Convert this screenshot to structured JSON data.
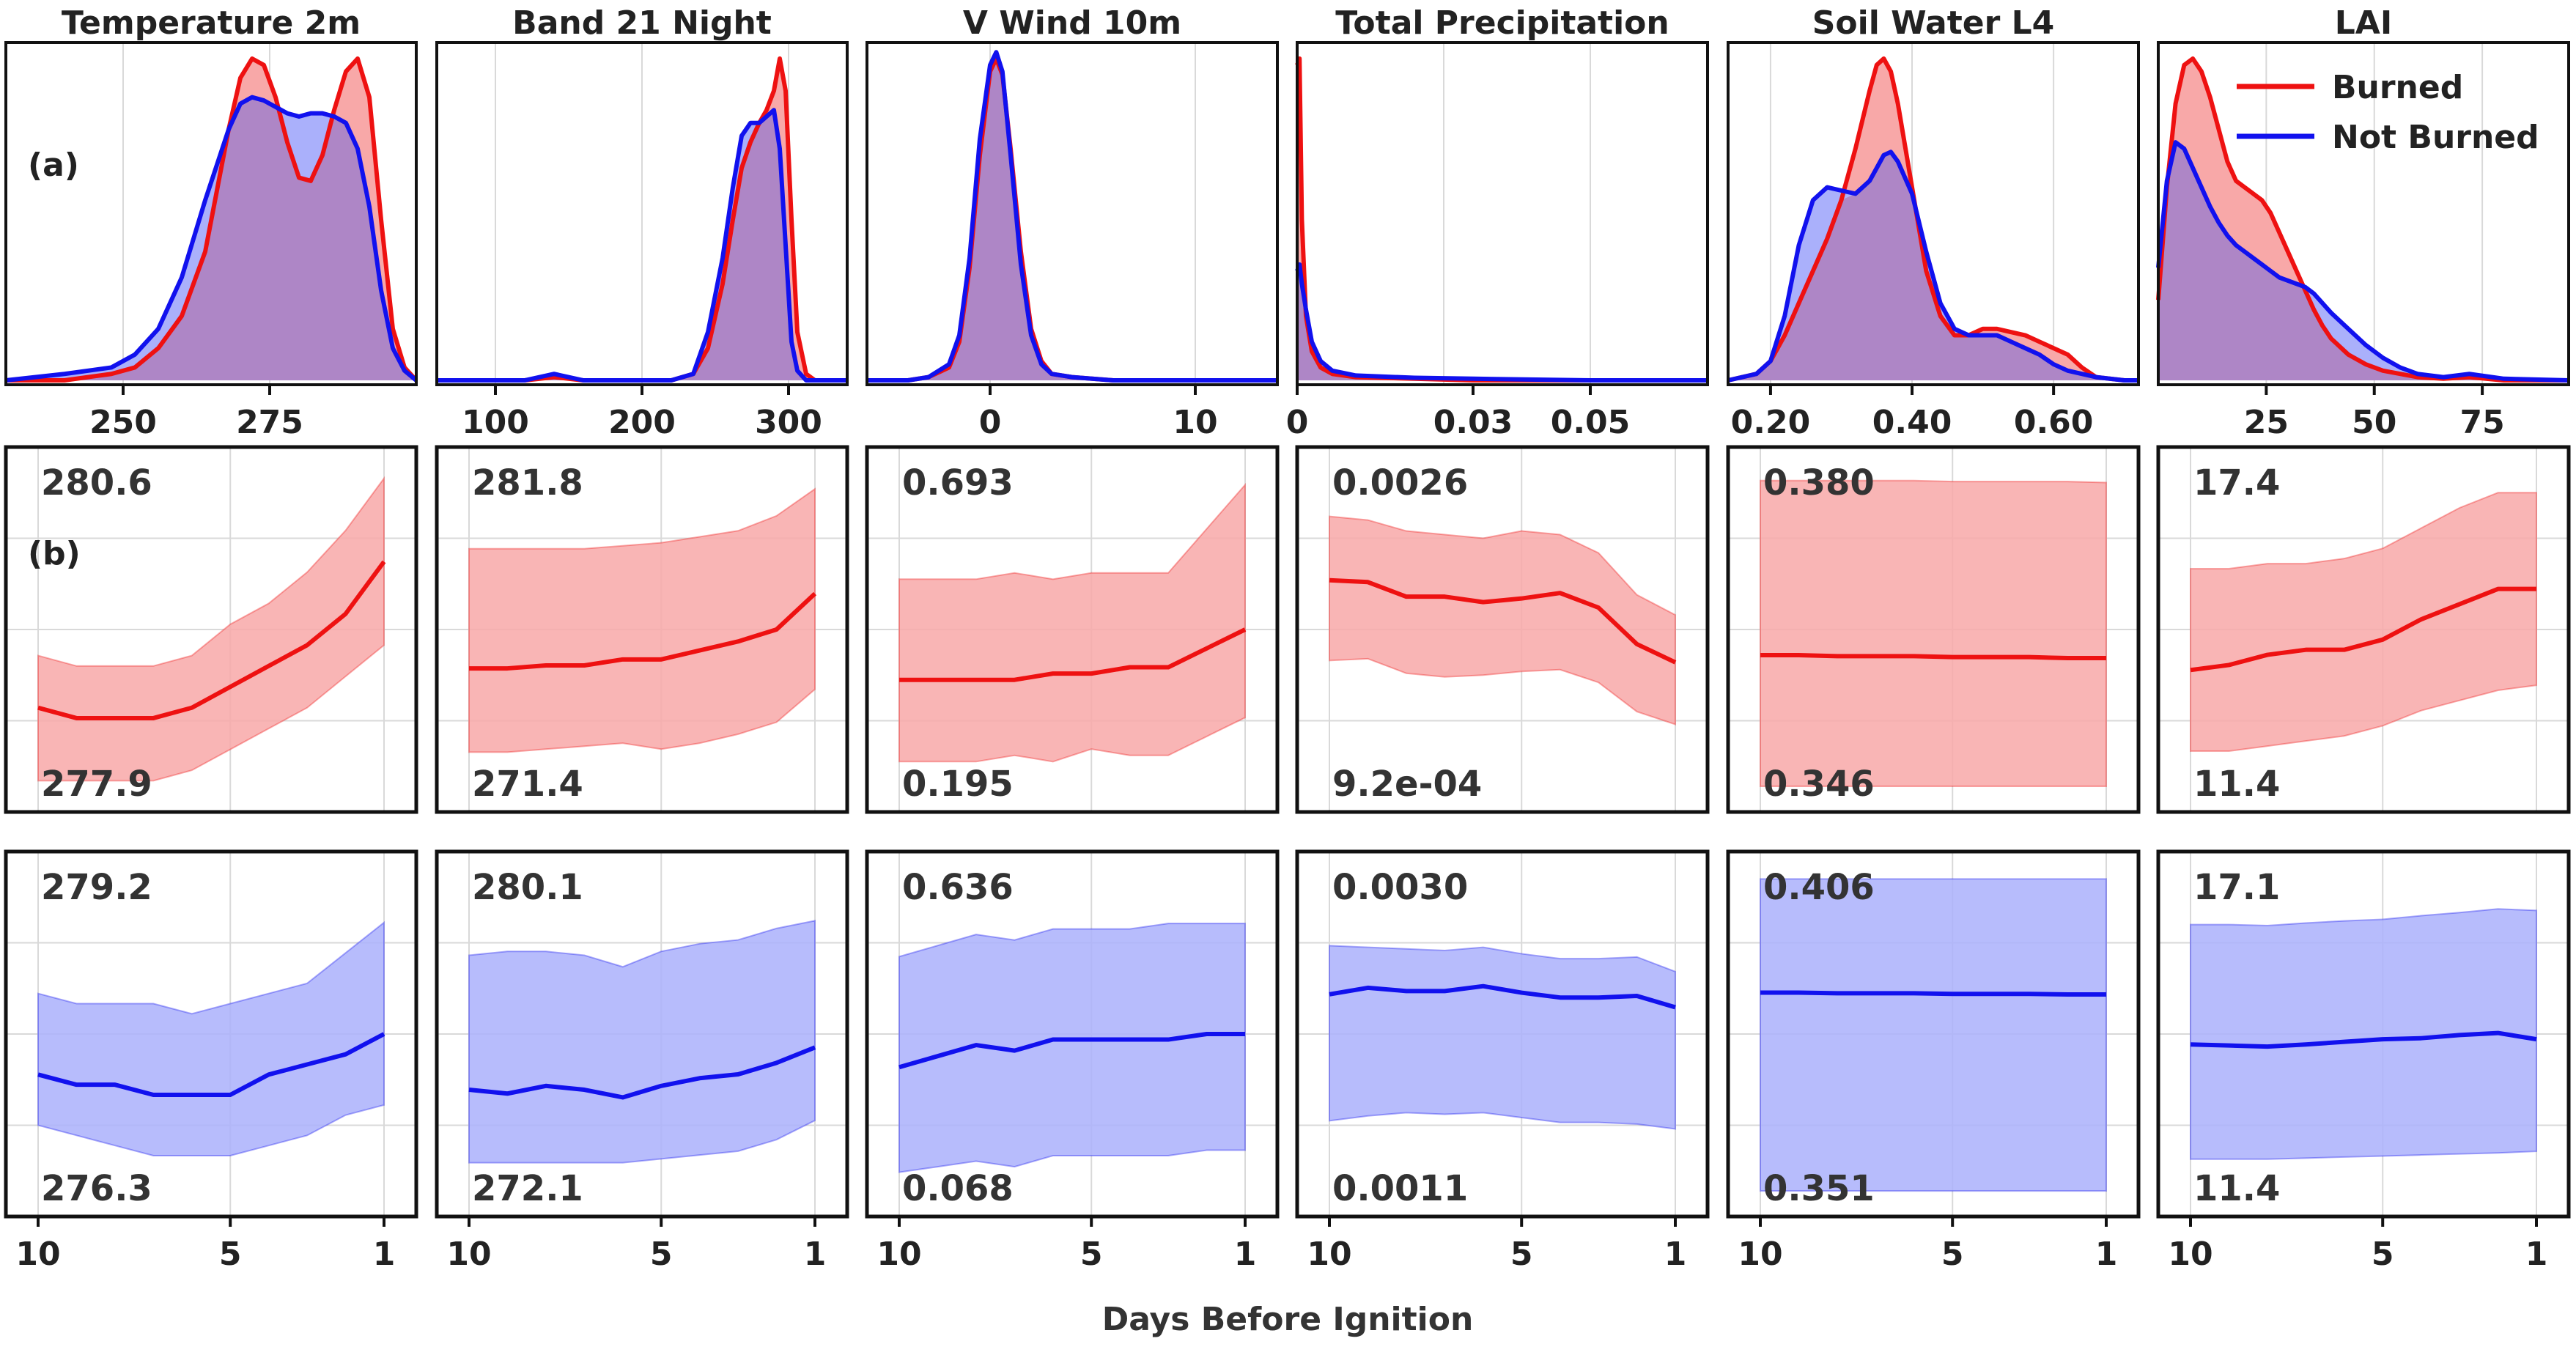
{
  "figure": {
    "label_a": "(a)",
    "label_b": "(b)",
    "xlabel": "Days Before Ignition",
    "day_ticks": [
      "10",
      "5",
      "1"
    ]
  },
  "legend": [
    {
      "label": "Burned",
      "color": "#ee1111"
    },
    {
      "label": "Not Burned",
      "color": "#1111ee"
    }
  ],
  "colors": {
    "burned_line": "#ee1111",
    "burned_fill": "#f8a8a8",
    "not_burned_line": "#1111ee",
    "not_burned_fill": "#aab0fb",
    "overlap_fill": "#ae86c6",
    "grid": "#d9d9d9"
  },
  "chart_data": [
    {
      "type": "area",
      "title": "Temperature 2m",
      "xlim": [
        230,
        300
      ],
      "xticks": [
        "250",
        "275"
      ],
      "xtick_values": [
        250,
        275
      ],
      "grid_x": [
        250,
        275,
        300
      ],
      "x": [
        230,
        240,
        248,
        252,
        256,
        260,
        264,
        268,
        270,
        272,
        274,
        276,
        278,
        280,
        282,
        284,
        286,
        288,
        290,
        292,
        294,
        296,
        298,
        300
      ],
      "burned": [
        0.0,
        0.0,
        0.02,
        0.04,
        0.1,
        0.2,
        0.4,
        0.78,
        0.94,
        1.0,
        0.98,
        0.88,
        0.74,
        0.63,
        0.62,
        0.7,
        0.84,
        0.96,
        1.0,
        0.88,
        0.5,
        0.16,
        0.04,
        0.0
      ],
      "not_burned": [
        0.0,
        0.02,
        0.04,
        0.08,
        0.16,
        0.32,
        0.56,
        0.78,
        0.86,
        0.88,
        0.87,
        0.85,
        0.83,
        0.82,
        0.83,
        0.83,
        0.82,
        0.8,
        0.72,
        0.54,
        0.28,
        0.1,
        0.03,
        0.0
      ],
      "burned_mean": {
        "top": "280.6",
        "bottom": "277.9",
        "ylim": [
          277.6,
          281.1
        ],
        "mean": [
          278.6,
          278.5,
          278.5,
          278.5,
          278.6,
          278.8,
          279.0,
          279.2,
          279.5,
          280.0
        ],
        "upper": [
          279.1,
          279.0,
          279.0,
          279.0,
          279.1,
          279.4,
          279.6,
          279.9,
          280.3,
          280.8
        ],
        "lower": [
          277.9,
          277.9,
          277.9,
          277.9,
          278.0,
          278.2,
          278.4,
          278.6,
          278.9,
          279.2
        ]
      },
      "not_burned_mean": {
        "top": "279.2",
        "bottom": "276.3",
        "ylim": [
          276.0,
          279.6
        ],
        "mean": [
          277.4,
          277.3,
          277.3,
          277.2,
          277.2,
          277.2,
          277.4,
          277.5,
          277.6,
          277.8
        ],
        "upper": [
          278.2,
          278.1,
          278.1,
          278.1,
          278.0,
          278.1,
          278.2,
          278.3,
          278.6,
          278.9
        ],
        "lower": [
          276.9,
          276.8,
          276.7,
          276.6,
          276.6,
          276.6,
          276.7,
          276.8,
          277.0,
          277.1
        ]
      }
    },
    {
      "type": "area",
      "title": "Band 21 Night",
      "xlim": [
        60,
        340
      ],
      "xticks": [
        "100",
        "200",
        "300"
      ],
      "xtick_values": [
        100,
        200,
        300
      ],
      "grid_x": [
        100,
        200,
        300
      ],
      "x": [
        60,
        120,
        140,
        160,
        220,
        235,
        245,
        255,
        262,
        268,
        274,
        280,
        285,
        290,
        294,
        298,
        302,
        306,
        312,
        318,
        340
      ],
      "burned": [
        0.0,
        0.0,
        0.01,
        0.0,
        0.0,
        0.02,
        0.1,
        0.3,
        0.5,
        0.66,
        0.74,
        0.8,
        0.84,
        0.9,
        1.0,
        0.9,
        0.5,
        0.15,
        0.02,
        0.0,
        0.0
      ],
      "not_burned": [
        0.0,
        0.0,
        0.02,
        0.0,
        0.0,
        0.02,
        0.15,
        0.38,
        0.6,
        0.76,
        0.8,
        0.8,
        0.82,
        0.84,
        0.72,
        0.42,
        0.12,
        0.03,
        0.0,
        0.0,
        0.0
      ],
      "burned_mean": {
        "top": "281.8",
        "bottom": "271.4",
        "ylim": [
          270.4,
          282.6
        ],
        "mean": [
          275.2,
          275.2,
          275.3,
          275.3,
          275.5,
          275.5,
          275.8,
          276.1,
          276.5,
          277.7
        ],
        "upper": [
          279.2,
          279.2,
          279.2,
          279.2,
          279.3,
          279.4,
          279.6,
          279.8,
          280.3,
          281.2
        ],
        "lower": [
          272.4,
          272.4,
          272.5,
          272.6,
          272.7,
          272.5,
          272.7,
          273.0,
          273.4,
          274.5
        ]
      },
      "not_burned_mean": {
        "top": "280.1",
        "bottom": "272.1",
        "ylim": [
          271.5,
          281.0
        ],
        "mean": [
          274.8,
          274.7,
          274.9,
          274.8,
          274.6,
          274.9,
          275.1,
          275.2,
          275.5,
          275.9
        ],
        "upper": [
          278.3,
          278.4,
          278.4,
          278.3,
          278.0,
          278.4,
          278.6,
          278.7,
          279.0,
          279.2
        ],
        "lower": [
          272.9,
          272.9,
          272.9,
          272.9,
          272.9,
          273.0,
          273.1,
          273.2,
          273.5,
          274.0
        ]
      }
    },
    {
      "type": "area",
      "title": "V Wind 10m",
      "xlim": [
        -6,
        14
      ],
      "xticks": [
        "0",
        "10"
      ],
      "xtick_values": [
        0,
        10
      ],
      "grid_x": [
        0,
        10
      ],
      "x": [
        -6,
        -4,
        -3,
        -2,
        -1.5,
        -1,
        -0.5,
        0,
        0.3,
        0.6,
        1,
        1.5,
        2,
        2.5,
        3,
        4,
        6,
        14
      ],
      "burned": [
        0.0,
        0.0,
        0.01,
        0.04,
        0.12,
        0.35,
        0.7,
        0.96,
        1.0,
        0.95,
        0.72,
        0.4,
        0.16,
        0.06,
        0.02,
        0.01,
        0.0,
        0.0
      ],
      "not_burned": [
        0.0,
        0.0,
        0.01,
        0.05,
        0.14,
        0.38,
        0.75,
        0.98,
        1.02,
        0.96,
        0.7,
        0.36,
        0.14,
        0.05,
        0.02,
        0.01,
        0.0,
        0.0
      ],
      "burned_mean": {
        "top": "0.693",
        "bottom": "0.195",
        "ylim": [
          0.16,
          0.74
        ],
        "mean": [
          0.37,
          0.37,
          0.37,
          0.37,
          0.38,
          0.38,
          0.39,
          0.39,
          0.42,
          0.45
        ],
        "upper": [
          0.53,
          0.53,
          0.53,
          0.54,
          0.53,
          0.54,
          0.54,
          0.54,
          0.61,
          0.68
        ],
        "lower": [
          0.24,
          0.24,
          0.24,
          0.25,
          0.24,
          0.26,
          0.25,
          0.25,
          0.28,
          0.31
        ]
      },
      "not_burned_mean": {
        "top": "0.636",
        "bottom": "0.068",
        "ylim": [
          0.03,
          0.69
        ],
        "mean": [
          0.3,
          0.32,
          0.34,
          0.33,
          0.35,
          0.35,
          0.35,
          0.35,
          0.36,
          0.36
        ],
        "upper": [
          0.5,
          0.52,
          0.54,
          0.53,
          0.55,
          0.55,
          0.55,
          0.56,
          0.56,
          0.56
        ],
        "lower": [
          0.11,
          0.12,
          0.13,
          0.12,
          0.14,
          0.14,
          0.14,
          0.14,
          0.15,
          0.15
        ]
      }
    },
    {
      "type": "area",
      "title": "Total Precipitation",
      "xlim": [
        0,
        0.07
      ],
      "xticks": [
        "0",
        "0.03",
        "0.05"
      ],
      "xtick_values": [
        0,
        0.03,
        0.05
      ],
      "grid_x": [
        0.0,
        0.025,
        0.05
      ],
      "x": [
        0.0,
        0.0004,
        0.0008,
        0.0015,
        0.0025,
        0.004,
        0.006,
        0.01,
        0.02,
        0.03,
        0.05,
        0.07
      ],
      "burned": [
        0.98,
        1.0,
        0.5,
        0.2,
        0.09,
        0.04,
        0.02,
        0.01,
        0.005,
        0.0,
        0.0,
        0.0
      ],
      "not_burned": [
        0.34,
        0.36,
        0.3,
        0.22,
        0.12,
        0.06,
        0.03,
        0.015,
        0.008,
        0.005,
        0.0,
        0.0
      ],
      "burned_mean": {
        "top": "0.0026",
        "bottom": "9.2e-04",
        "ylim": [
          0.0008,
          0.0028
        ],
        "mean": [
          0.00207,
          0.00206,
          0.00198,
          0.00198,
          0.00195,
          0.00197,
          0.002,
          0.00192,
          0.00172,
          0.00162
        ],
        "upper": [
          0.00242,
          0.0024,
          0.00234,
          0.00232,
          0.0023,
          0.00234,
          0.00232,
          0.00222,
          0.00199,
          0.00188
        ],
        "lower": [
          0.00163,
          0.00164,
          0.00156,
          0.00154,
          0.00155,
          0.00157,
          0.00158,
          0.00151,
          0.00135,
          0.00128
        ]
      },
      "not_burned_mean": {
        "top": "0.0030",
        "bottom": "0.0011",
        "ylim": [
          0.00095,
          0.0032
        ],
        "mean": [
          0.00232,
          0.00236,
          0.00234,
          0.00234,
          0.00237,
          0.00233,
          0.0023,
          0.0023,
          0.00231,
          0.00224
        ],
        "upper": [
          0.00262,
          0.00261,
          0.0026,
          0.00259,
          0.00261,
          0.00257,
          0.00254,
          0.00254,
          0.00255,
          0.00246
        ],
        "lower": [
          0.00154,
          0.00157,
          0.00159,
          0.00158,
          0.00159,
          0.00156,
          0.00153,
          0.00153,
          0.00152,
          0.00149
        ]
      }
    },
    {
      "type": "area",
      "title": "Soil Water L4",
      "xlim": [
        0.14,
        0.72
      ],
      "xticks": [
        "0.20",
        "0.40",
        "0.60"
      ],
      "xtick_values": [
        0.2,
        0.4,
        0.6
      ],
      "grid_x": [
        0.2,
        0.4,
        0.6
      ],
      "x": [
        0.14,
        0.18,
        0.2,
        0.22,
        0.24,
        0.26,
        0.28,
        0.3,
        0.32,
        0.34,
        0.35,
        0.36,
        0.37,
        0.38,
        0.4,
        0.42,
        0.44,
        0.46,
        0.48,
        0.5,
        0.52,
        0.54,
        0.56,
        0.58,
        0.6,
        0.62,
        0.64,
        0.66,
        0.7,
        0.72
      ],
      "burned": [
        0.0,
        0.02,
        0.06,
        0.14,
        0.24,
        0.34,
        0.44,
        0.56,
        0.72,
        0.9,
        0.98,
        1.0,
        0.96,
        0.86,
        0.6,
        0.34,
        0.2,
        0.14,
        0.14,
        0.16,
        0.16,
        0.15,
        0.14,
        0.12,
        0.1,
        0.08,
        0.04,
        0.01,
        0.0,
        0.0
      ],
      "not_burned": [
        0.0,
        0.02,
        0.06,
        0.2,
        0.42,
        0.56,
        0.6,
        0.59,
        0.58,
        0.62,
        0.66,
        0.7,
        0.71,
        0.68,
        0.58,
        0.4,
        0.24,
        0.16,
        0.14,
        0.14,
        0.14,
        0.12,
        0.1,
        0.08,
        0.05,
        0.03,
        0.02,
        0.01,
        0.0,
        0.0
      ],
      "burned_mean": {
        "top": "0.380",
        "bottom": "0.346",
        "ylim": [
          0.344,
          0.381
        ],
        "mean": [
          0.3599,
          0.3599,
          0.3598,
          0.3598,
          0.3598,
          0.3597,
          0.3597,
          0.3597,
          0.3596,
          0.3596
        ],
        "upper": [
          0.3776,
          0.3776,
          0.3776,
          0.3776,
          0.3776,
          0.3775,
          0.3775,
          0.3775,
          0.3775,
          0.3774
        ],
        "lower": [
          0.3466,
          0.3466,
          0.3466,
          0.3466,
          0.3466,
          0.3466,
          0.3466,
          0.3466,
          0.3466,
          0.3466
        ]
      },
      "not_burned_mean": {
        "top": "0.406",
        "bottom": "0.351",
        "ylim": [
          0.348,
          0.408
        ],
        "mean": [
          0.3848,
          0.3848,
          0.3847,
          0.3847,
          0.3847,
          0.3846,
          0.3846,
          0.3846,
          0.3845,
          0.3845
        ],
        "upper": [
          0.4035,
          0.4035,
          0.4035,
          0.4035,
          0.4035,
          0.4035,
          0.4035,
          0.4035,
          0.4035,
          0.4035
        ],
        "lower": [
          0.3522,
          0.3522,
          0.3522,
          0.3522,
          0.3522,
          0.3522,
          0.3522,
          0.3522,
          0.3522,
          0.3522
        ]
      }
    },
    {
      "type": "area",
      "title": "LAI",
      "xlim": [
        0,
        95
      ],
      "xticks": [
        "25",
        "50",
        "75"
      ],
      "xtick_values": [
        25,
        50,
        75
      ],
      "grid_x": [
        25,
        50,
        75
      ],
      "x": [
        0,
        2,
        4,
        6,
        8,
        10,
        12,
        14,
        16,
        18,
        20,
        22,
        24,
        26,
        28,
        30,
        32,
        34,
        36,
        38,
        40,
        44,
        48,
        52,
        56,
        60,
        66,
        72,
        80,
        95
      ],
      "burned": [
        0.25,
        0.6,
        0.86,
        0.98,
        1.0,
        0.96,
        0.88,
        0.78,
        0.68,
        0.62,
        0.6,
        0.58,
        0.56,
        0.52,
        0.46,
        0.4,
        0.34,
        0.28,
        0.22,
        0.17,
        0.13,
        0.08,
        0.05,
        0.03,
        0.02,
        0.01,
        0.005,
        0.01,
        0.0,
        0.0
      ],
      "not_burned": [
        0.35,
        0.62,
        0.74,
        0.72,
        0.66,
        0.6,
        0.54,
        0.49,
        0.45,
        0.42,
        0.4,
        0.38,
        0.36,
        0.34,
        0.32,
        0.31,
        0.3,
        0.29,
        0.27,
        0.24,
        0.21,
        0.16,
        0.11,
        0.07,
        0.04,
        0.02,
        0.01,
        0.02,
        0.005,
        0.0
      ],
      "burned_mean": {
        "top": "17.4",
        "bottom": "11.4",
        "ylim": [
          10.8,
          18.0
        ],
        "mean": [
          13.6,
          13.7,
          13.9,
          14.0,
          14.0,
          14.2,
          14.6,
          14.9,
          15.2,
          15.2
        ],
        "upper": [
          15.6,
          15.6,
          15.7,
          15.7,
          15.8,
          16.0,
          16.4,
          16.8,
          17.1,
          17.1
        ],
        "lower": [
          12.0,
          12.0,
          12.1,
          12.2,
          12.3,
          12.5,
          12.8,
          13.0,
          13.2,
          13.3
        ]
      },
      "not_burned_mean": {
        "top": "17.1",
        "bottom": "11.4",
        "ylim": [
          10.7,
          17.7
        ],
        "mean": [
          14.0,
          13.98,
          13.96,
          14.0,
          14.05,
          14.1,
          14.12,
          14.18,
          14.22,
          14.1
        ],
        "upper": [
          16.3,
          16.3,
          16.28,
          16.33,
          16.37,
          16.4,
          16.47,
          16.53,
          16.6,
          16.57
        ],
        "lower": [
          11.8,
          11.8,
          11.8,
          11.82,
          11.84,
          11.86,
          11.88,
          11.9,
          11.92,
          11.95
        ]
      }
    }
  ]
}
